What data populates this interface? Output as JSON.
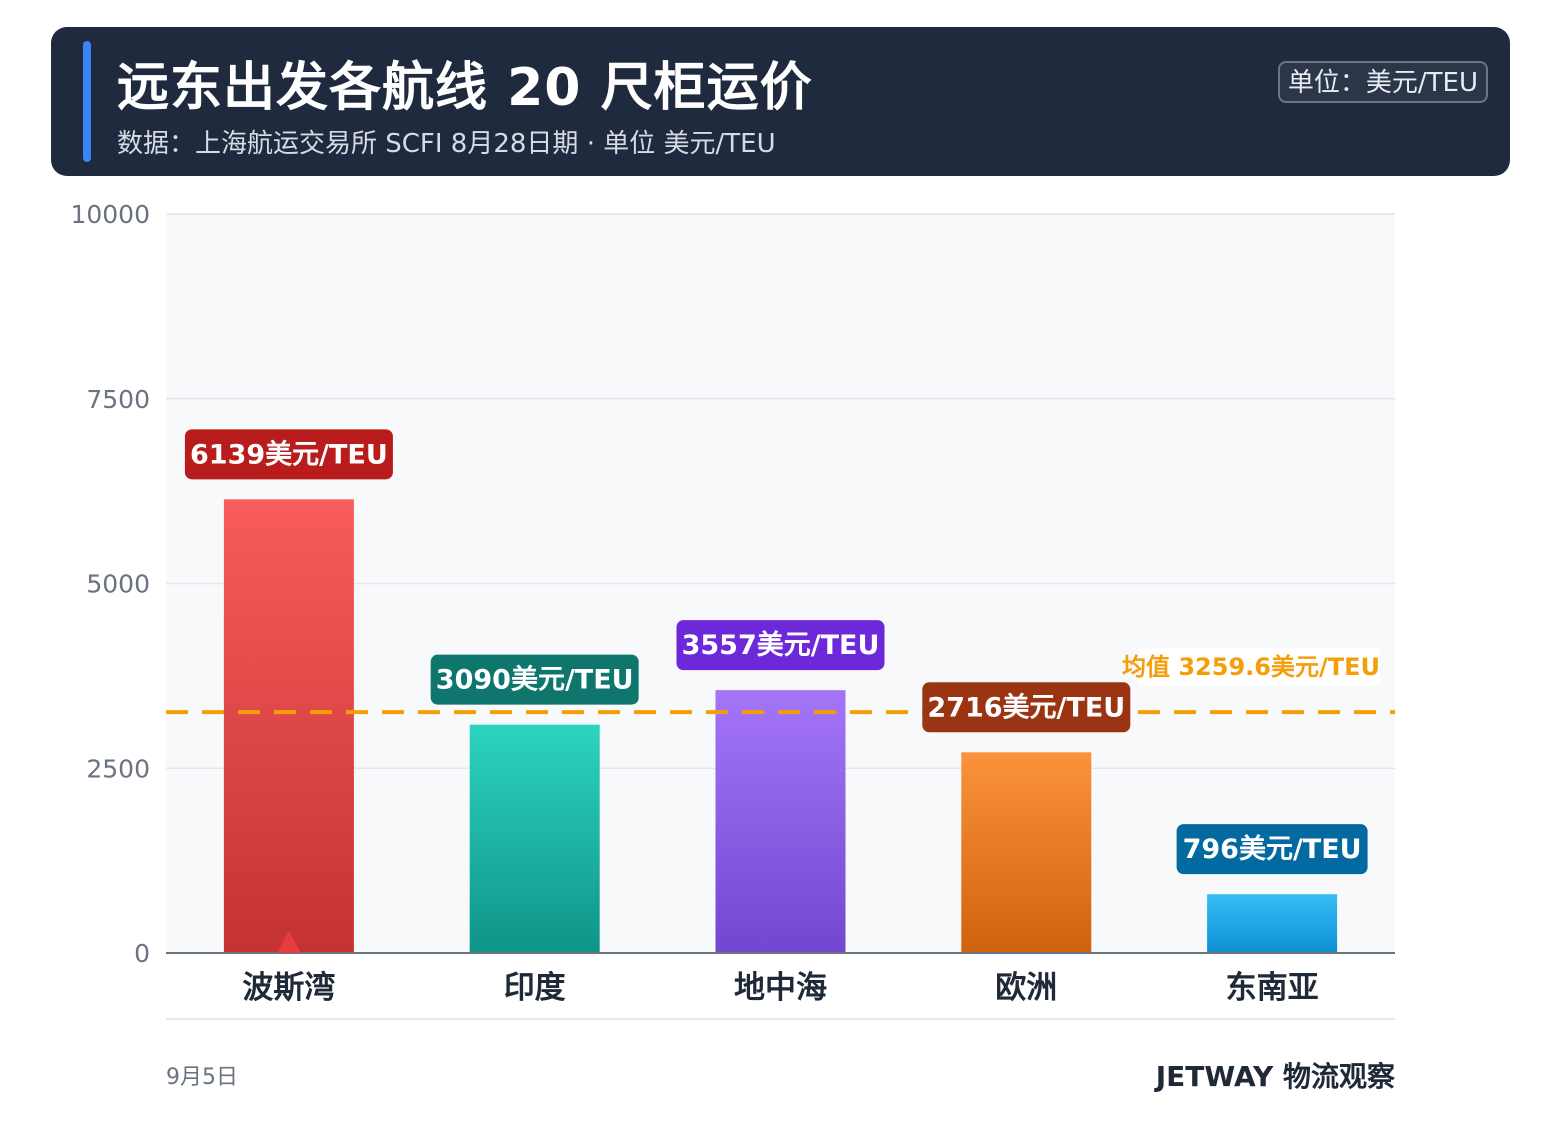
{
  "header": {
    "title": "远东出发各航线 20 尺柜运价",
    "subtitle": "数据：上海航运交易所 SCFI 8月28日期 · 单位 美元/TEU",
    "unit_badge": "单位：美元/TEU"
  },
  "footer": {
    "date": "9月5日",
    "brand": "JETWAY 物流观察"
  },
  "colors": {
    "header_bg": "#1f2a3e",
    "accent": "#3b82f6",
    "mean_line": "#f59e0b",
    "plot_bg": "#f8f9fb",
    "grid": "#e3e6eb"
  },
  "chart_data": {
    "type": "bar",
    "categories": [
      "波斯湾",
      "印度",
      "地中海",
      "欧洲",
      "东南亚"
    ],
    "values": [
      6139,
      3090,
      3557,
      2716,
      796
    ],
    "data_labels": [
      "6139美元/TEU",
      "3090美元/TEU",
      "3557美元/TEU",
      "2716美元/TEU",
      "796美元/TEU"
    ],
    "bar_colors": [
      {
        "top": "#f85c5c",
        "bottom": "#c43232",
        "label_bg": "#b91c1c"
      },
      {
        "top": "#2dd4bf",
        "bottom": "#0f9488",
        "label_bg": "#0f766e"
      },
      {
        "top": "#a475f7",
        "bottom": "#7247d0",
        "label_bg": "#6d28d9"
      },
      {
        "top": "#fb923c",
        "bottom": "#d0620f",
        "label_bg": "#9a3412"
      },
      {
        "top": "#38bdf8",
        "bottom": "#0d8fd0",
        "label_bg": "#0369a1"
      }
    ],
    "y_ticks": [
      "0",
      "2500",
      "5000",
      "7500",
      "10000"
    ],
    "ylim": [
      0,
      10000
    ],
    "mean": {
      "value": 3259.6,
      "label": "均值 3259.6美元/TEU"
    },
    "highlight_category": "波斯湾",
    "grid": true,
    "xlabel": "",
    "ylabel": ""
  }
}
